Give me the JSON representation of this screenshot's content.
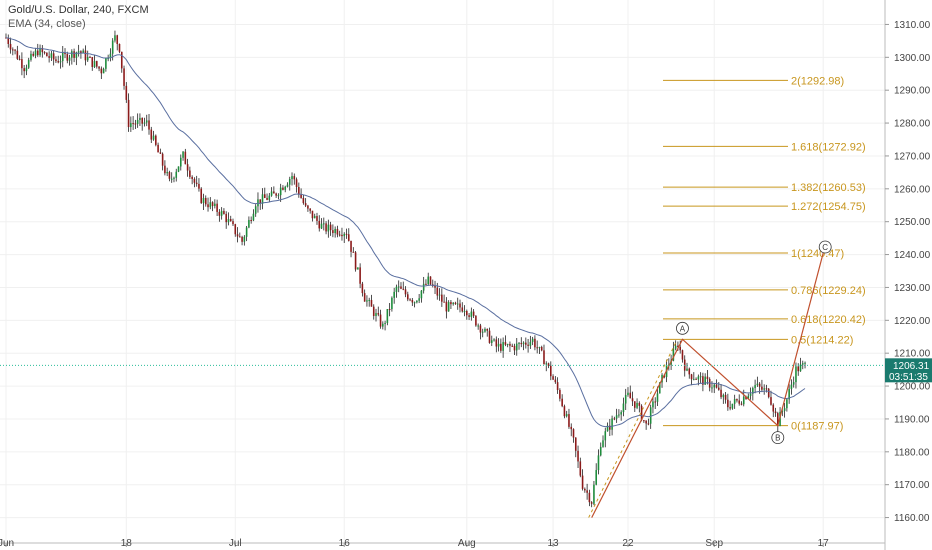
{
  "header": {
    "title": "Gold/U.S. Dollar, 240, FXCM",
    "indicator": "EMA (34, close)"
  },
  "colors": {
    "up_candle": "#1e8c3c",
    "down_candle": "#8b1a1a",
    "wick": "#222222",
    "ema": "#5a6fa0",
    "fib": "#c8961e",
    "wave": "#c0502e",
    "last_price_bg": "#1a7a6e",
    "last_price_line": "#2bbd9a"
  },
  "chart_data": {
    "type": "candlestick",
    "instrument": "Gold/U.S. Dollar",
    "timeframe": "240",
    "source": "FXCM",
    "ylim": [
      1155,
      1315
    ],
    "y_ticks": [
      1160,
      1170,
      1180,
      1190,
      1200,
      1210,
      1220,
      1230,
      1240,
      1250,
      1260,
      1270,
      1280,
      1290,
      1300,
      1310
    ],
    "x_ticks": [
      {
        "label": "Jun",
        "bar": 0
      },
      {
        "label": "18",
        "bar": 53
      },
      {
        "label": "Jul",
        "bar": 101
      },
      {
        "label": "16",
        "bar": 149
      },
      {
        "label": "Aug",
        "bar": 203
      },
      {
        "label": "13",
        "bar": 241
      },
      {
        "label": "22",
        "bar": 274
      },
      {
        "label": "Sep",
        "bar": 312
      },
      {
        "label": "17",
        "bar": 360
      }
    ],
    "price_path": [
      [
        0,
        1306
      ],
      [
        8,
        1297
      ],
      [
        14,
        1302
      ],
      [
        22,
        1299
      ],
      [
        32,
        1302
      ],
      [
        42,
        1296
      ],
      [
        48,
        1306
      ],
      [
        50,
        1303
      ],
      [
        54,
        1280
      ],
      [
        62,
        1280
      ],
      [
        72,
        1262
      ],
      [
        78,
        1270
      ],
      [
        86,
        1257
      ],
      [
        96,
        1252
      ],
      [
        104,
        1244
      ],
      [
        110,
        1256
      ],
      [
        118,
        1258
      ],
      [
        126,
        1264
      ],
      [
        132,
        1254
      ],
      [
        140,
        1248
      ],
      [
        150,
        1247
      ],
      [
        158,
        1227
      ],
      [
        166,
        1218
      ],
      [
        172,
        1230
      ],
      [
        180,
        1226
      ],
      [
        186,
        1232
      ],
      [
        194,
        1224
      ],
      [
        202,
        1224
      ],
      [
        210,
        1217
      ],
      [
        216,
        1212
      ],
      [
        224,
        1212
      ],
      [
        232,
        1214
      ],
      [
        238,
        1207
      ],
      [
        244,
        1197
      ],
      [
        250,
        1183
      ],
      [
        254,
        1170
      ],
      [
        258,
        1165
      ],
      [
        262,
        1183
      ],
      [
        266,
        1188
      ],
      [
        274,
        1197
      ],
      [
        278,
        1194
      ],
      [
        282,
        1188
      ],
      [
        290,
        1204
      ],
      [
        296,
        1213
      ],
      [
        300,
        1204
      ],
      [
        306,
        1202
      ],
      [
        312,
        1200
      ],
      [
        318,
        1194
      ],
      [
        324,
        1196
      ],
      [
        330,
        1200
      ],
      [
        336,
        1198
      ],
      [
        340,
        1189
      ],
      [
        344,
        1196
      ],
      [
        348,
        1205
      ],
      [
        352,
        1206.3
      ]
    ],
    "fib_levels": [
      {
        "label": "2(1292.98)",
        "value": 1292.98
      },
      {
        "label": "1.618(1272.92)",
        "value": 1272.92
      },
      {
        "label": "1.382(1260.53)",
        "value": 1260.53
      },
      {
        "label": "1.272(1254.75)",
        "value": 1254.75
      },
      {
        "label": "1(1240.47)",
        "value": 1240.47
      },
      {
        "label": "0.786(1229.24)",
        "value": 1229.24
      },
      {
        "label": "0.618(1220.42)",
        "value": 1220.42
      },
      {
        "label": "0.5(1214.22)",
        "value": 1214.22
      },
      {
        "label": "0(1187.97)",
        "value": 1187.97
      }
    ],
    "wave_points": [
      {
        "bar": 258,
        "value": 1160
      },
      {
        "label": "A",
        "bar": 298,
        "value": 1214.22
      },
      {
        "label": "B",
        "bar": 340,
        "value": 1187.97
      },
      {
        "label": "C",
        "bar": 360,
        "value": 1240.47
      }
    ],
    "last_price": {
      "value": 1206.31,
      "label": "1206.31",
      "countdown": "03:51:35"
    }
  }
}
